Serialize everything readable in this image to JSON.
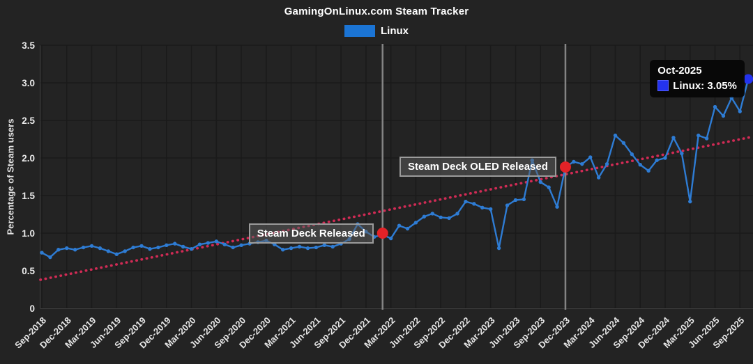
{
  "header": {
    "title": "GamingOnLinux.com Steam Tracker",
    "legend_label": "Linux",
    "legend_color": "#1b74d4"
  },
  "tooltip": {
    "title": "Oct-2025",
    "value_text": "Linux: 3.05%",
    "swatch_color": "#2433ee"
  },
  "chart_data": {
    "type": "line",
    "title": "GamingOnLinux.com Steam Tracker",
    "xlabel": "",
    "ylabel": "Percentage of Steam users",
    "ylim": [
      0,
      3.5
    ],
    "grid": true,
    "legend_position": "top",
    "y_ticks": [
      "3.5",
      "3.0",
      "2.5",
      "2.0",
      "1.5",
      "1.0",
      "0.5",
      "0"
    ],
    "y_tick_values": [
      3.5,
      3.0,
      2.5,
      2.0,
      1.5,
      1.0,
      0.5,
      0
    ],
    "x_tick_labels": [
      "Sep-2018",
      "Dec-2018",
      "Mar-2019",
      "Jun-2019",
      "Sep-2019",
      "Dec-2019",
      "Mar-2020",
      "Jun-2020",
      "Sep-2020",
      "Dec-2020",
      "Mar-2021",
      "Jun-2021",
      "Sep-2021",
      "Dec-2021",
      "Mar-2022",
      "Jun-2022",
      "Sep-2022",
      "Dec-2022",
      "Mar-2023",
      "Jun-2023",
      "Sep-2023",
      "Dec-2023",
      "Mar-2024",
      "Jun-2024",
      "Sep-2024",
      "Dec-2024",
      "Mar-2025",
      "Jun-2025",
      "Sep-2025"
    ],
    "series": [
      {
        "name": "Linux",
        "color": "#2e7cd4",
        "x": [
          "Sep-2018",
          "Oct-2018",
          "Nov-2018",
          "Dec-2018",
          "Jan-2019",
          "Feb-2019",
          "Mar-2019",
          "Apr-2019",
          "May-2019",
          "Jun-2019",
          "Jul-2019",
          "Aug-2019",
          "Sep-2019",
          "Oct-2019",
          "Nov-2019",
          "Dec-2019",
          "Jan-2020",
          "Feb-2020",
          "Mar-2020",
          "Apr-2020",
          "May-2020",
          "Jun-2020",
          "Jul-2020",
          "Aug-2020",
          "Sep-2020",
          "Oct-2020",
          "Nov-2020",
          "Dec-2020",
          "Jan-2021",
          "Feb-2021",
          "Mar-2021",
          "Apr-2021",
          "May-2021",
          "Jun-2021",
          "Jul-2021",
          "Aug-2021",
          "Sep-2021",
          "Oct-2021",
          "Nov-2021",
          "Dec-2021",
          "Jan-2022",
          "Feb-2022",
          "Mar-2022",
          "Apr-2022",
          "May-2022",
          "Jun-2022",
          "Jul-2022",
          "Aug-2022",
          "Sep-2022",
          "Oct-2022",
          "Nov-2022",
          "Dec-2022",
          "Jan-2023",
          "Feb-2023",
          "Mar-2023",
          "Apr-2023",
          "May-2023",
          "Jun-2023",
          "Jul-2023",
          "Aug-2023",
          "Sep-2023",
          "Oct-2023",
          "Nov-2023",
          "Dec-2023",
          "Jan-2024",
          "Feb-2024",
          "Mar-2024",
          "Apr-2024",
          "May-2024",
          "Jun-2024",
          "Jul-2024",
          "Aug-2024",
          "Sep-2024",
          "Oct-2024",
          "Nov-2024",
          "Dec-2024",
          "Jan-2025",
          "Feb-2025",
          "Mar-2025",
          "Apr-2025",
          "May-2025",
          "Jun-2025",
          "Jul-2025",
          "Aug-2025",
          "Sep-2025",
          "Oct-2025"
        ],
        "values": [
          0.74,
          0.68,
          0.78,
          0.8,
          0.78,
          0.81,
          0.83,
          0.8,
          0.76,
          0.72,
          0.76,
          0.81,
          0.83,
          0.79,
          0.81,
          0.84,
          0.86,
          0.82,
          0.79,
          0.85,
          0.87,
          0.89,
          0.85,
          0.81,
          0.84,
          0.86,
          0.88,
          0.9,
          0.85,
          0.78,
          0.8,
          0.82,
          0.8,
          0.81,
          0.84,
          0.82,
          0.86,
          0.92,
          1.12,
          1.02,
          0.95,
          0.98,
          0.93,
          1.1,
          1.06,
          1.14,
          1.22,
          1.26,
          1.21,
          1.2,
          1.26,
          1.42,
          1.39,
          1.34,
          1.32,
          0.8,
          1.37,
          1.44,
          1.45,
          1.97,
          1.68,
          1.61,
          1.35,
          1.88,
          1.95,
          1.92,
          2.01,
          1.74,
          1.92,
          2.3,
          2.2,
          2.05,
          1.91,
          1.83,
          1.97,
          2.0,
          2.27,
          2.06,
          1.42,
          2.3,
          2.26,
          2.68,
          2.56,
          2.8,
          2.62,
          3.05
        ]
      }
    ],
    "trend_line": {
      "style": "dotted",
      "color": "#d12b55",
      "start_value": 0.38,
      "end_value": 2.28
    },
    "annotations": [
      {
        "label": "Steam Deck Released",
        "month": "Feb-2022",
        "value": 1.0,
        "dot_color": "#e32227",
        "line_color": "#8a8a8a"
      },
      {
        "label": "Steam Deck OLED Released",
        "month": "Dec-2023",
        "value": 1.88,
        "dot_color": "#e32227",
        "line_color": "#8a8a8a"
      }
    ],
    "highlight_point": {
      "month": "Oct-2025",
      "value": 3.05,
      "color": "#2433ee"
    }
  }
}
